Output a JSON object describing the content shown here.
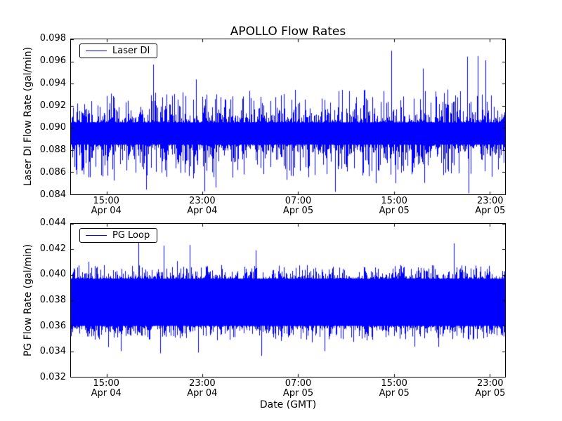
{
  "figure": {
    "title": "APOLLO Flow Rates",
    "xlabel": "Date (GMT)",
    "background": "#ffffff",
    "line_color": "#0000ff",
    "axis_color": "#000000",
    "noise_seed": 7
  },
  "chart_data": [
    {
      "type": "line",
      "title": "APOLLO Flow Rates",
      "ylabel": "Laser DI Flow Rate (gal/min)",
      "legend": {
        "label": "Laser DI",
        "position": "upper left"
      },
      "ylim": [
        0.084,
        0.098
      ],
      "yticks": [
        0.084,
        0.086,
        0.088,
        0.09,
        0.092,
        0.094,
        0.096,
        0.098
      ],
      "ytick_labels": [
        "0.084",
        "0.086",
        "0.088",
        "0.090",
        "0.092",
        "0.094",
        "0.096",
        "0.098"
      ],
      "x_range_hours": [
        0,
        36.3
      ],
      "xtick_hours": [
        3,
        11,
        19,
        27,
        35
      ],
      "xtick_labels": [
        [
          "15:00",
          "Apr 04"
        ],
        [
          "23:00",
          "Apr 04"
        ],
        [
          "07:00",
          "Apr 05"
        ],
        [
          "15:00",
          "Apr 05"
        ],
        [
          "23:00",
          "Apr 05"
        ]
      ],
      "grid": false,
      "series": [
        {
          "name": "Laser DI",
          "color": "#0000ff",
          "appearance": "dense high-frequency noise band",
          "baseline": 0.0895,
          "core_band": [
            0.0885,
            0.0905
          ],
          "typical_spike_band": [
            0.0855,
            0.0935
          ],
          "extreme_high": 0.097,
          "extreme_low": 0.084,
          "extreme_prob": 0.012
        }
      ]
    },
    {
      "type": "line",
      "title": "",
      "ylabel": "PG Flow Rate (gal/min)",
      "legend": {
        "label": "PG Loop",
        "position": "upper left"
      },
      "ylim": [
        0.032,
        0.044
      ],
      "yticks": [
        0.032,
        0.034,
        0.036,
        0.038,
        0.04,
        0.042,
        0.044
      ],
      "ytick_labels": [
        "0.032",
        "0.034",
        "0.036",
        "0.038",
        "0.040",
        "0.042",
        "0.044"
      ],
      "x_range_hours": [
        0,
        36.3
      ],
      "xtick_hours": [
        3,
        11,
        19,
        27,
        35
      ],
      "xtick_labels": [
        [
          "15:00",
          "Apr 04"
        ],
        [
          "23:00",
          "Apr 04"
        ],
        [
          "07:00",
          "Apr 05"
        ],
        [
          "15:00",
          "Apr 05"
        ],
        [
          "23:00",
          "Apr 05"
        ]
      ],
      "grid": false,
      "series": [
        {
          "name": "PG Loop",
          "color": "#0000ff",
          "appearance": "dense high-frequency noise band",
          "baseline": 0.038,
          "core_band": [
            0.036,
            0.0397
          ],
          "typical_spike_band": [
            0.0349,
            0.0408
          ],
          "extreme_high": 0.0432,
          "extreme_low": 0.033,
          "extreme_prob": 0.02
        }
      ]
    }
  ]
}
